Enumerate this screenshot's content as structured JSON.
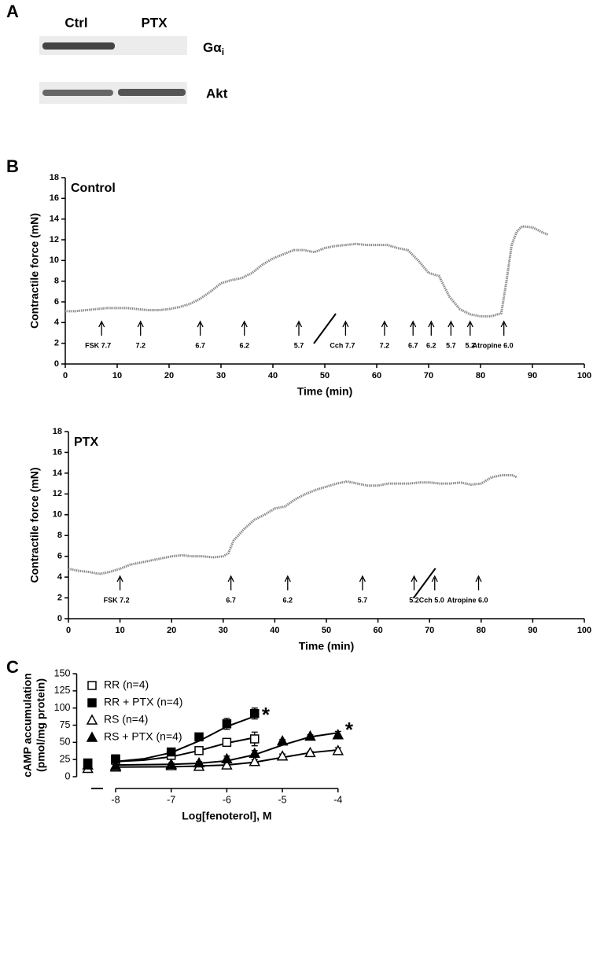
{
  "blot": {
    "panel_label": "A",
    "lanes": [
      "Ctrl",
      "PTX"
    ],
    "rows": [
      {
        "text": "Gα",
        "subscript": "i"
      },
      {
        "text": "Akt"
      }
    ]
  },
  "chart_data": [
    {
      "type": "line",
      "panel_label": "B",
      "title": "Control",
      "xlabel": "Time (min)",
      "ylabel": "Contractile force (mN)",
      "xlim": [
        0,
        100
      ],
      "ylim": [
        0,
        18
      ],
      "xticks": [
        0,
        10,
        20,
        30,
        40,
        50,
        60,
        70,
        80,
        90,
        100
      ],
      "yticks": [
        0,
        2,
        4,
        6,
        8,
        10,
        12,
        14,
        16,
        18
      ],
      "color": "#8a8a8a",
      "x": [
        0,
        2,
        4,
        6,
        8,
        10,
        12,
        14,
        16,
        18,
        20,
        22,
        24,
        26,
        28,
        30,
        32,
        34,
        36,
        38,
        40,
        42,
        44,
        46,
        48,
        50,
        52,
        54,
        56,
        58,
        60,
        62,
        64,
        66,
        68,
        70,
        72,
        74,
        76,
        78,
        80,
        82,
        84,
        85,
        86,
        87,
        88,
        90,
        92,
        93
      ],
      "values": [
        5.1,
        5.1,
        5.2,
        5.3,
        5.4,
        5.4,
        5.4,
        5.3,
        5.2,
        5.2,
        5.3,
        5.5,
        5.8,
        6.3,
        7.0,
        7.8,
        8.1,
        8.3,
        8.8,
        9.6,
        10.2,
        10.6,
        11.0,
        11.0,
        10.8,
        11.2,
        11.4,
        11.5,
        11.6,
        11.5,
        11.5,
        11.5,
        11.2,
        11.0,
        10.0,
        8.8,
        8.5,
        6.5,
        5.3,
        4.8,
        4.6,
        4.6,
        4.9,
        8.0,
        11.5,
        12.8,
        13.3,
        13.2,
        12.7,
        12.5
      ],
      "break_x": 50,
      "arrows": [
        {
          "x": 7,
          "label": "FSK 7.7"
        },
        {
          "x": 14.5,
          "label": "7.2"
        },
        {
          "x": 26,
          "label": "6.7"
        },
        {
          "x": 34.5,
          "label": "6.2"
        },
        {
          "x": 45,
          "label": "5.7"
        },
        {
          "x": 54,
          "label": "Cch 7.7"
        },
        {
          "x": 61.5,
          "label": "7.2"
        },
        {
          "x": 67,
          "label": "6.7"
        },
        {
          "x": 70.5,
          "label": "6.2"
        },
        {
          "x": 74.3,
          "label": "5.7"
        },
        {
          "x": 78,
          "label": "5.2"
        },
        {
          "x": 84.5,
          "label": "Atropine 6.0"
        }
      ]
    },
    {
      "type": "line",
      "title": "PTX",
      "xlabel": "Time (min)",
      "ylabel": "Contractile force (mN)",
      "xlim": [
        0,
        100
      ],
      "ylim": [
        0,
        18
      ],
      "xticks": [
        0,
        10,
        20,
        30,
        40,
        50,
        60,
        70,
        80,
        90,
        100
      ],
      "yticks": [
        0,
        2,
        4,
        6,
        8,
        10,
        12,
        14,
        16,
        18
      ],
      "color": "#8a8a8a",
      "x": [
        0,
        2,
        4,
        6,
        8,
        10,
        12,
        14,
        16,
        18,
        20,
        22,
        24,
        26,
        28,
        30,
        31,
        32,
        34,
        36,
        38,
        40,
        42,
        44,
        46,
        48,
        50,
        52,
        54,
        56,
        58,
        60,
        62,
        64,
        66,
        68,
        70,
        72,
        74,
        76,
        78,
        80,
        82,
        84,
        86,
        87
      ],
      "values": [
        4.8,
        4.6,
        4.5,
        4.3,
        4.5,
        4.8,
        5.2,
        5.4,
        5.6,
        5.8,
        6.0,
        6.1,
        6.0,
        6.0,
        5.9,
        6.0,
        6.3,
        7.5,
        8.6,
        9.5,
        10.0,
        10.6,
        10.8,
        11.5,
        12.0,
        12.4,
        12.7,
        13.0,
        13.2,
        13.0,
        12.8,
        12.8,
        13.0,
        13.0,
        13.0,
        13.1,
        13.1,
        13.0,
        13.0,
        13.1,
        12.9,
        13.0,
        13.6,
        13.8,
        13.8,
        13.6
      ],
      "break_x": 69,
      "arrows": [
        {
          "x": 10,
          "label": "FSK 7.2"
        },
        {
          "x": 31.5,
          "label": "6.7"
        },
        {
          "x": 42.5,
          "label": "6.2"
        },
        {
          "x": 57,
          "label": "5.7"
        },
        {
          "x": 67,
          "label": "5.2"
        },
        {
          "x": 71,
          "label": "Cch 5.0"
        },
        {
          "x": 79.5,
          "label": "Atropine 6.0"
        }
      ]
    },
    {
      "type": "scatter",
      "panel_label": "C",
      "xlabel": "Log[fenoterol], M",
      "ylabel": [
        "cAMP accumulation",
        "(pmol/mg protein)"
      ],
      "xlim": [
        -8.7,
        -3.7
      ],
      "ylim": [
        0,
        150
      ],
      "xticks": [
        -8,
        -7,
        -6,
        -5,
        -4
      ],
      "yticks": [
        0,
        25,
        50,
        75,
        100,
        125,
        150
      ],
      "series": [
        {
          "name": "RR (n=4)",
          "color": "#000000",
          "marker": "square",
          "filled": false,
          "x": [
            -8.5,
            -8,
            -7,
            -6.5,
            -6,
            -5.5
          ],
          "values": [
            19,
            24,
            31,
            38,
            50,
            55
          ],
          "errors": [
            3,
            2,
            2,
            5,
            5,
            10
          ],
          "fit_x": [
            -8,
            -7.5,
            -7,
            -6.5,
            -6,
            -5.5
          ],
          "fit_y": [
            22,
            24,
            29,
            38,
            49,
            57
          ]
        },
        {
          "name": "RR + PTX (n=4)",
          "color": "#000000",
          "marker": "square",
          "filled": true,
          "x": [
            -8.5,
            -8,
            -7,
            -6.5,
            -6,
            -5.5
          ],
          "values": [
            20,
            26,
            36,
            58,
            77,
            92
          ],
          "errors": [
            3,
            2,
            2,
            5,
            8,
            8
          ],
          "fit_x": [
            -8,
            -7.5,
            -7,
            -6.5,
            -6,
            -5.5
          ],
          "fit_y": [
            22,
            26,
            35,
            52,
            73,
            88
          ]
        },
        {
          "name": "RS (n=4)",
          "color": "#000000",
          "marker": "triangle",
          "filled": false,
          "x": [
            -8.5,
            -8,
            -7,
            -6.5,
            -6,
            -5.5,
            -5,
            -4.5,
            -4
          ],
          "values": [
            12,
            14,
            16,
            15,
            17,
            22,
            30,
            35,
            38
          ],
          "errors": [
            3,
            2,
            2,
            2,
            2,
            3,
            3,
            2,
            4
          ],
          "fit_x": [
            -8,
            -7,
            -6.5,
            -6,
            -5.5,
            -5,
            -4.5,
            -4
          ],
          "fit_y": [
            14,
            14.5,
            15.5,
            17,
            21,
            28,
            35,
            39
          ]
        },
        {
          "name": "RS + PTX (n=4)",
          "color": "#000000",
          "marker": "triangle",
          "filled": true,
          "x": [
            -8.5,
            -8,
            -7,
            -6.5,
            -6,
            -5.5,
            -5,
            -4.5,
            -4
          ],
          "values": [
            17,
            16,
            18,
            20,
            26,
            34,
            52,
            59,
            61
          ],
          "errors": [
            3,
            2,
            2,
            2,
            4,
            4,
            2,
            2,
            5
          ],
          "fit_x": [
            -8,
            -7,
            -6.5,
            -6,
            -5.5,
            -5,
            -4.5,
            -4
          ],
          "fit_y": [
            17,
            18,
            19.5,
            23,
            32,
            46,
            58,
            64
          ]
        }
      ],
      "annotations": [
        {
          "text": "*",
          "x": -5.3,
          "y": 88
        },
        {
          "text": "*",
          "x": -3.8,
          "y": 66
        }
      ]
    }
  ]
}
